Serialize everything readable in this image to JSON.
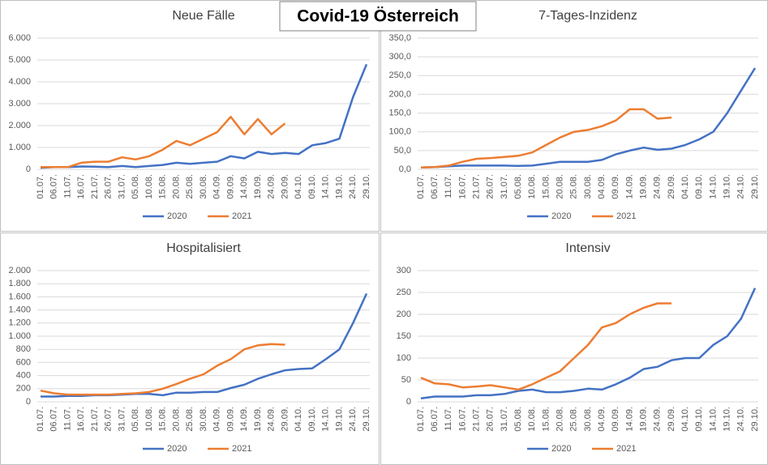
{
  "title": "Covid-19 Österreich",
  "chart_data": [
    {
      "type": "line",
      "title": "Neue Fälle",
      "categories": [
        "01.07.",
        "06.07.",
        "11.07.",
        "16.07.",
        "21.07.",
        "26.07.",
        "31.07.",
        "05.08.",
        "10.08.",
        "15.08.",
        "20.08.",
        "25.08.",
        "30.08.",
        "04.09.",
        "09.09.",
        "14.09.",
        "19.09.",
        "24.09.",
        "29.09.",
        "04.10.",
        "09.10.",
        "14.10.",
        "19.10.",
        "24.10.",
        "29.10."
      ],
      "series": [
        {
          "name": "2020",
          "color": "#4472c4",
          "values": [
            70,
            100,
            100,
            130,
            120,
            100,
            150,
            100,
            150,
            200,
            300,
            250,
            300,
            350,
            600,
            500,
            800,
            700,
            750,
            700,
            1100,
            1200,
            1400,
            3300,
            4800
          ]
        },
        {
          "name": "2021",
          "color": "#ed7d31",
          "values": [
            100,
            100,
            100,
            300,
            350,
            350,
            550,
            450,
            600,
            900,
            1300,
            1100,
            1400,
            1700,
            2400,
            1600,
            2300,
            1600,
            2100,
            null,
            null,
            null,
            null,
            null,
            null
          ]
        }
      ],
      "ylim": [
        0,
        6000
      ],
      "yticks": [
        0,
        {
          "value": 1000,
          "label": "1.000"
        },
        {
          "value": 2000,
          "label": "2.000"
        },
        {
          "value": 3000,
          "label": "3.000"
        },
        {
          "value": 4000,
          "label": "4.000"
        },
        {
          "value": 5000,
          "label": "5.000"
        },
        {
          "value": 6000,
          "label": "6.000"
        }
      ],
      "grid": true,
      "legend": "bottom"
    },
    {
      "type": "line",
      "title": "7-Tages-Inzidenz",
      "categories": [
        "01.07.",
        "06.07.",
        "11.07.",
        "16.07.",
        "21.07.",
        "26.07.",
        "31.07.",
        "05.08.",
        "10.08.",
        "15.08.",
        "20.08.",
        "25.08.",
        "30.08.",
        "04.09.",
        "09.09.",
        "14.09.",
        "19.09.",
        "24.09.",
        "29.09.",
        "04.10.",
        "09.10.",
        "14.10.",
        "19.10.",
        "24.10.",
        "29.10."
      ],
      "series": [
        {
          "name": "2020",
          "color": "#4472c4",
          "values": [
            5,
            6,
            8,
            10,
            10,
            10,
            10,
            9,
            10,
            15,
            20,
            20,
            20,
            25,
            40,
            50,
            58,
            52,
            55,
            65,
            80,
            100,
            150,
            210,
            270
          ]
        },
        {
          "name": "2021",
          "color": "#ed7d31",
          "values": [
            5,
            6,
            10,
            20,
            28,
            30,
            33,
            36,
            45,
            65,
            85,
            100,
            105,
            115,
            130,
            160,
            160,
            135,
            138,
            null,
            null,
            null,
            null,
            null,
            null
          ]
        }
      ],
      "ylim": [
        0,
        350
      ],
      "yticks": [
        {
          "value": 0,
          "label": "0,0"
        },
        {
          "value": 50,
          "label": "50,0"
        },
        {
          "value": 100,
          "label": "100,0"
        },
        {
          "value": 150,
          "label": "150,0"
        },
        {
          "value": 200,
          "label": "200,0"
        },
        {
          "value": 250,
          "label": "250,0"
        },
        {
          "value": 300,
          "label": "300,0"
        },
        {
          "value": 350,
          "label": "350,0"
        }
      ],
      "grid": true,
      "legend": "bottom"
    },
    {
      "type": "line",
      "title": "Hospitalisiert",
      "categories": [
        "01.07.",
        "06.07.",
        "11.07.",
        "16.07.",
        "21.07.",
        "26.07.",
        "31.07.",
        "05.08.",
        "10.08.",
        "15.08.",
        "20.08.",
        "25.08.",
        "30.08.",
        "04.09.",
        "09.09.",
        "14.09.",
        "19.09.",
        "24.09.",
        "29.09.",
        "04.10.",
        "09.10.",
        "14.10.",
        "19.10.",
        "24.10.",
        "29.10."
      ],
      "series": [
        {
          "name": "2020",
          "color": "#4472c4",
          "values": [
            80,
            80,
            90,
            90,
            100,
            100,
            110,
            120,
            120,
            100,
            140,
            140,
            150,
            150,
            210,
            260,
            350,
            420,
            480,
            500,
            510,
            650,
            800,
            1200,
            1650
          ]
        },
        {
          "name": "2021",
          "color": "#ed7d31",
          "values": [
            170,
            130,
            110,
            110,
            110,
            110,
            120,
            130,
            150,
            200,
            270,
            350,
            420,
            550,
            650,
            800,
            860,
            880,
            870,
            null,
            null,
            null,
            null,
            null,
            null
          ]
        }
      ],
      "ylim": [
        0,
        2000
      ],
      "yticks": [
        0,
        200,
        400,
        600,
        800,
        {
          "value": 1000,
          "label": "1.000"
        },
        {
          "value": 1200,
          "label": "1.200"
        },
        {
          "value": 1400,
          "label": "1.400"
        },
        {
          "value": 1600,
          "label": "1.600"
        },
        {
          "value": 1800,
          "label": "1.800"
        },
        {
          "value": 2000,
          "label": "2.000"
        }
      ],
      "grid": true,
      "legend": "bottom"
    },
    {
      "type": "line",
      "title": "Intensiv",
      "categories": [
        "01.07.",
        "06.07.",
        "11.07.",
        "16.07.",
        "21.07.",
        "26.07.",
        "31.07.",
        "05.08.",
        "10.08.",
        "15.08.",
        "20.08.",
        "25.08.",
        "30.08.",
        "04.09.",
        "09.09.",
        "14.09.",
        "19.09.",
        "24.09.",
        "29.09.",
        "04.10.",
        "09.10.",
        "14.10.",
        "19.10.",
        "24.10.",
        "29.10."
      ],
      "series": [
        {
          "name": "2020",
          "color": "#4472c4",
          "values": [
            8,
            12,
            12,
            12,
            15,
            15,
            18,
            25,
            28,
            22,
            22,
            25,
            30,
            28,
            40,
            55,
            75,
            80,
            95,
            100,
            100,
            130,
            150,
            190,
            260
          ]
        },
        {
          "name": "2021",
          "color": "#ed7d31",
          "values": [
            55,
            42,
            40,
            33,
            35,
            38,
            33,
            28,
            40,
            55,
            70,
            100,
            130,
            170,
            180,
            200,
            215,
            225,
            225,
            null,
            null,
            null,
            null,
            null,
            null
          ]
        }
      ],
      "ylim": [
        0,
        300
      ],
      "yticks": [
        0,
        50,
        100,
        150,
        200,
        250,
        300
      ],
      "grid": true,
      "legend": "bottom"
    }
  ]
}
